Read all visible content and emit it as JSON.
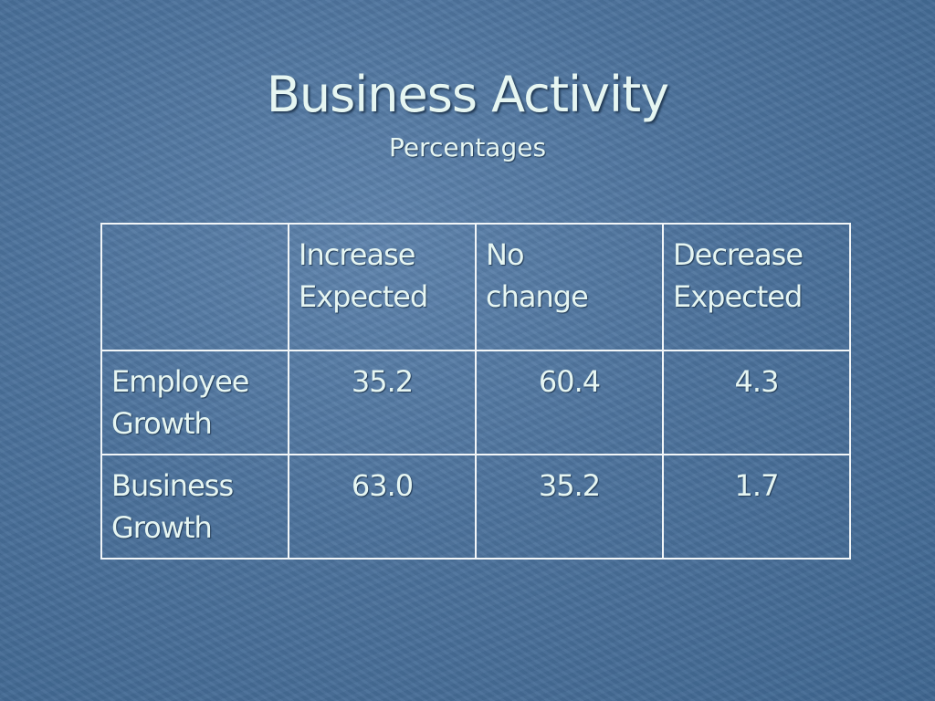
{
  "title": "Business Activity",
  "subtitle": "Percentages",
  "table": {
    "header": [
      "",
      "Increase\nExpected",
      "No\nchange",
      "Decrease\nExpected"
    ],
    "rows": [
      [
        "Employee\nGrowth",
        "35.2",
        "60.4",
        "4.3"
      ],
      [
        "Business\nGrowth",
        "63.0",
        "35.2",
        "1.7"
      ]
    ]
  }
}
